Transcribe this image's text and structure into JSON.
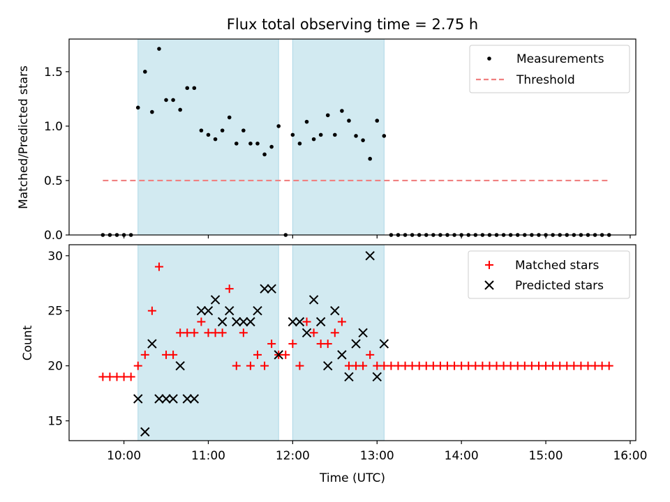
{
  "chart_data": {
    "type": "scatter",
    "title": "Flux total observing time = 2.75 h",
    "xlabel": "Time (UTC)",
    "xlim": [
      "09:21",
      "16:04"
    ],
    "x_tick_labels": [
      "10:00",
      "11:00",
      "12:00",
      "13:00",
      "14:00",
      "15:00",
      "16:00"
    ],
    "shaded_intervals": [
      {
        "start": "10:10",
        "end": "11:50"
      },
      {
        "start": "12:00",
        "end": "13:05"
      }
    ],
    "colors": {
      "measurements": "#000000",
      "threshold": "#f08080",
      "matched": "#ff0000",
      "predicted": "#000000",
      "shade": "#add8e6"
    },
    "panels": [
      {
        "ylabel": "Matched/Predicted stars",
        "ylim": [
          0,
          1.8
        ],
        "y_ticks": [
          "0.0",
          "0.5",
          "1.0",
          "1.5"
        ],
        "legend": {
          "position": "top-right",
          "entries": [
            "Measurements",
            "Threshold"
          ]
        },
        "series": [
          {
            "name": "Measurements",
            "marker": "dot",
            "points": [
              [
                "09:45",
                0
              ],
              [
                "09:50",
                0
              ],
              [
                "09:55",
                0
              ],
              [
                "10:00",
                0
              ],
              [
                "10:05",
                0
              ],
              [
                "10:10",
                1.17
              ],
              [
                "10:15",
                1.5
              ],
              [
                "10:20",
                1.13
              ],
              [
                "10:25",
                1.71
              ],
              [
                "10:30",
                1.24
              ],
              [
                "10:35",
                1.24
              ],
              [
                "10:40",
                1.15
              ],
              [
                "10:45",
                1.35
              ],
              [
                "10:50",
                1.35
              ],
              [
                "10:55",
                0.96
              ],
              [
                "11:00",
                0.92
              ],
              [
                "11:05",
                0.88
              ],
              [
                "11:10",
                0.96
              ],
              [
                "11:15",
                1.08
              ],
              [
                "11:20",
                0.84
              ],
              [
                "11:25",
                0.96
              ],
              [
                "11:30",
                0.84
              ],
              [
                "11:35",
                0.84
              ],
              [
                "11:40",
                0.74
              ],
              [
                "11:45",
                0.81
              ],
              [
                "11:50",
                1.0
              ],
              [
                "11:55",
                0
              ],
              [
                "12:00",
                0.92
              ],
              [
                "12:05",
                0.84
              ],
              [
                "12:10",
                1.04
              ],
              [
                "12:15",
                0.88
              ],
              [
                "12:20",
                0.92
              ],
              [
                "12:25",
                1.1
              ],
              [
                "12:30",
                0.92
              ],
              [
                "12:35",
                1.14
              ],
              [
                "12:40",
                1.05
              ],
              [
                "12:45",
                0.91
              ],
              [
                "12:50",
                0.87
              ],
              [
                "12:55",
                0.7
              ],
              [
                "13:00",
                1.05
              ],
              [
                "13:05",
                0.91
              ],
              [
                "13:10",
                0
              ],
              [
                "13:15",
                0
              ],
              [
                "13:20",
                0
              ],
              [
                "13:25",
                0
              ],
              [
                "13:30",
                0
              ],
              [
                "13:35",
                0
              ],
              [
                "13:40",
                0
              ],
              [
                "13:45",
                0
              ],
              [
                "13:50",
                0
              ],
              [
                "13:55",
                0
              ],
              [
                "14:00",
                0
              ],
              [
                "14:05",
                0
              ],
              [
                "14:10",
                0
              ],
              [
                "14:15",
                0
              ],
              [
                "14:20",
                0
              ],
              [
                "14:25",
                0
              ],
              [
                "14:30",
                0
              ],
              [
                "14:35",
                0
              ],
              [
                "14:40",
                0
              ],
              [
                "14:45",
                0
              ],
              [
                "14:50",
                0
              ],
              [
                "14:55",
                0
              ],
              [
                "15:00",
                0
              ],
              [
                "15:05",
                0
              ],
              [
                "15:10",
                0
              ],
              [
                "15:15",
                0
              ],
              [
                "15:20",
                0
              ],
              [
                "15:25",
                0
              ],
              [
                "15:30",
                0
              ],
              [
                "15:35",
                0
              ],
              [
                "15:40",
                0
              ],
              [
                "15:45",
                0
              ]
            ]
          },
          {
            "name": "Threshold",
            "marker": "dashed-line",
            "points": [
              [
                "09:45",
                0.5
              ],
              [
                "15:45",
                0.5
              ]
            ]
          }
        ]
      },
      {
        "ylabel": "Count",
        "ylim": [
          13.2,
          31.0
        ],
        "y_ticks": [
          "15",
          "20",
          "25",
          "30"
        ],
        "legend": {
          "position": "top-right",
          "entries": [
            "Matched stars",
            "Predicted stars"
          ]
        },
        "series": [
          {
            "name": "Matched stars",
            "marker": "plus",
            "points": [
              [
                "09:45",
                19
              ],
              [
                "09:50",
                19
              ],
              [
                "09:55",
                19
              ],
              [
                "10:00",
                19
              ],
              [
                "10:05",
                19
              ],
              [
                "10:10",
                20
              ],
              [
                "10:15",
                21
              ],
              [
                "10:20",
                25
              ],
              [
                "10:25",
                29
              ],
              [
                "10:30",
                21
              ],
              [
                "10:35",
                21
              ],
              [
                "10:40",
                23
              ],
              [
                "10:45",
                23
              ],
              [
                "10:50",
                23
              ],
              [
                "10:55",
                24
              ],
              [
                "11:00",
                23
              ],
              [
                "11:05",
                23
              ],
              [
                "11:10",
                23
              ],
              [
                "11:15",
                27
              ],
              [
                "11:20",
                20
              ],
              [
                "11:25",
                23
              ],
              [
                "11:30",
                20
              ],
              [
                "11:35",
                21
              ],
              [
                "11:40",
                20
              ],
              [
                "11:45",
                22
              ],
              [
                "11:50",
                21
              ],
              [
                "11:55",
                21
              ],
              [
                "12:00",
                22
              ],
              [
                "12:05",
                20
              ],
              [
                "12:10",
                24
              ],
              [
                "12:15",
                23
              ],
              [
                "12:20",
                22
              ],
              [
                "12:25",
                22
              ],
              [
                "12:30",
                23
              ],
              [
                "12:35",
                24
              ],
              [
                "12:40",
                20
              ],
              [
                "12:45",
                20
              ],
              [
                "12:50",
                20
              ],
              [
                "12:55",
                21
              ],
              [
                "13:00",
                20
              ],
              [
                "13:05",
                20
              ],
              [
                "13:10",
                20
              ],
              [
                "13:15",
                20
              ],
              [
                "13:20",
                20
              ],
              [
                "13:25",
                20
              ],
              [
                "13:30",
                20
              ],
              [
                "13:35",
                20
              ],
              [
                "13:40",
                20
              ],
              [
                "13:45",
                20
              ],
              [
                "13:50",
                20
              ],
              [
                "13:55",
                20
              ],
              [
                "14:00",
                20
              ],
              [
                "14:05",
                20
              ],
              [
                "14:10",
                20
              ],
              [
                "14:15",
                20
              ],
              [
                "14:20",
                20
              ],
              [
                "14:25",
                20
              ],
              [
                "14:30",
                20
              ],
              [
                "14:35",
                20
              ],
              [
                "14:40",
                20
              ],
              [
                "14:45",
                20
              ],
              [
                "14:50",
                20
              ],
              [
                "14:55",
                20
              ],
              [
                "15:00",
                20
              ],
              [
                "15:05",
                20
              ],
              [
                "15:10",
                20
              ],
              [
                "15:15",
                20
              ],
              [
                "15:20",
                20
              ],
              [
                "15:25",
                20
              ],
              [
                "15:30",
                20
              ],
              [
                "15:35",
                20
              ],
              [
                "15:40",
                20
              ],
              [
                "15:45",
                20
              ]
            ]
          },
          {
            "name": "Predicted stars",
            "marker": "x",
            "points": [
              [
                "10:10",
                17
              ],
              [
                "10:15",
                14
              ],
              [
                "10:20",
                22
              ],
              [
                "10:25",
                17
              ],
              [
                "10:30",
                17
              ],
              [
                "10:35",
                17
              ],
              [
                "10:40",
                20
              ],
              [
                "10:45",
                17
              ],
              [
                "10:50",
                17
              ],
              [
                "10:55",
                25
              ],
              [
                "11:00",
                25
              ],
              [
                "11:05",
                26
              ],
              [
                "11:10",
                24
              ],
              [
                "11:15",
                25
              ],
              [
                "11:20",
                24
              ],
              [
                "11:25",
                24
              ],
              [
                "11:30",
                24
              ],
              [
                "11:35",
                25
              ],
              [
                "11:40",
                27
              ],
              [
                "11:45",
                27
              ],
              [
                "11:50",
                21
              ],
              [
                "12:00",
                24
              ],
              [
                "12:05",
                24
              ],
              [
                "12:10",
                23
              ],
              [
                "12:15",
                26
              ],
              [
                "12:20",
                24
              ],
              [
                "12:25",
                20
              ],
              [
                "12:30",
                25
              ],
              [
                "12:35",
                21
              ],
              [
                "12:40",
                19
              ],
              [
                "12:45",
                22
              ],
              [
                "12:50",
                23
              ],
              [
                "12:55",
                30
              ],
              [
                "13:00",
                19
              ],
              [
                "13:05",
                22
              ]
            ]
          }
        ]
      }
    ]
  }
}
